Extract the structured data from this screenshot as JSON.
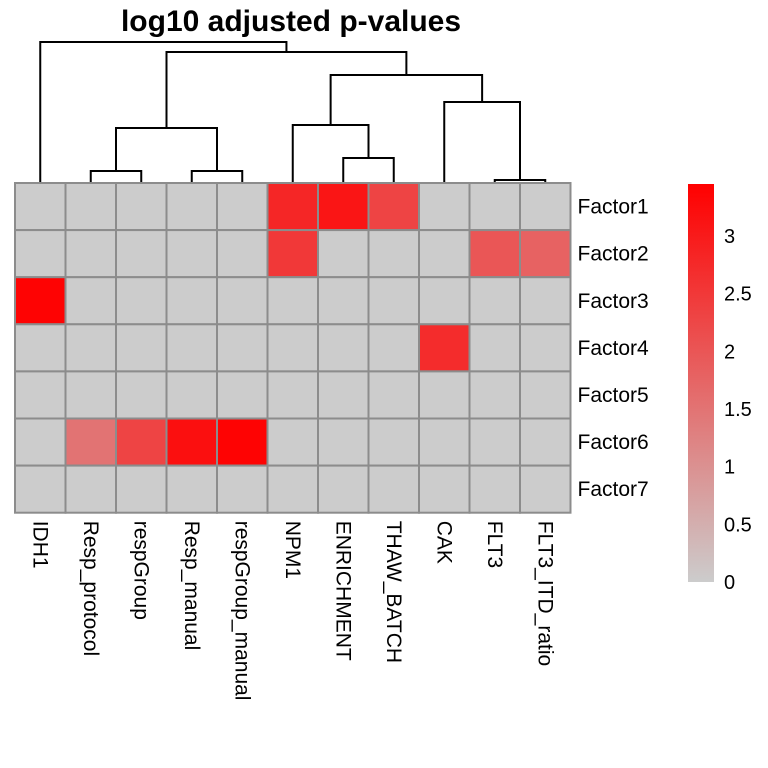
{
  "chart_data": {
    "type": "heatmap",
    "title": "log10 adjusted p-values",
    "columns": [
      "IDH1",
      "Resp_protocol",
      "respGroup",
      "Resp_manual",
      "respGroup_manual",
      "NPM1",
      "ENRICHMENT",
      "THAW_BATCH",
      "CAK",
      "FLT3",
      "FLT3_ITD_ratio"
    ],
    "rows": [
      "Factor1",
      "Factor2",
      "Factor3",
      "Factor4",
      "Factor5",
      "Factor6",
      "Factor7"
    ],
    "values": [
      [
        0,
        0,
        0,
        0,
        0,
        2.8,
        3.1,
        2.3,
        0,
        0,
        0
      ],
      [
        0,
        0,
        0,
        0,
        0,
        2.5,
        0,
        0,
        0,
        2.0,
        1.8
      ],
      [
        3.4,
        0,
        0,
        0,
        0,
        0,
        0,
        0,
        0,
        0,
        0
      ],
      [
        0,
        0,
        0,
        0,
        0,
        0,
        0,
        0,
        2.7,
        0,
        0
      ],
      [
        0,
        0,
        0,
        0,
        0,
        0,
        0,
        0,
        0,
        0,
        0
      ],
      [
        0,
        1.5,
        2.3,
        3.2,
        3.4,
        0,
        0,
        0,
        0,
        0,
        0
      ],
      [
        0,
        0,
        0,
        0,
        0,
        0,
        0,
        0,
        0,
        0,
        0
      ]
    ],
    "color_scale": {
      "min": 0,
      "max": 3.45,
      "low_color": "#cccccc",
      "high_color": "#ff0000",
      "missing_color": "#cccccc",
      "border_color": "#8c8c8c"
    },
    "legend": {
      "position": "right",
      "ticks": [
        0,
        0.5,
        1,
        1.5,
        2,
        2.5,
        3
      ],
      "tick_labels": [
        "0",
        "0.5",
        "1",
        "1.5",
        "2",
        "2.5",
        "3"
      ]
    },
    "column_dendrogram": true
  }
}
